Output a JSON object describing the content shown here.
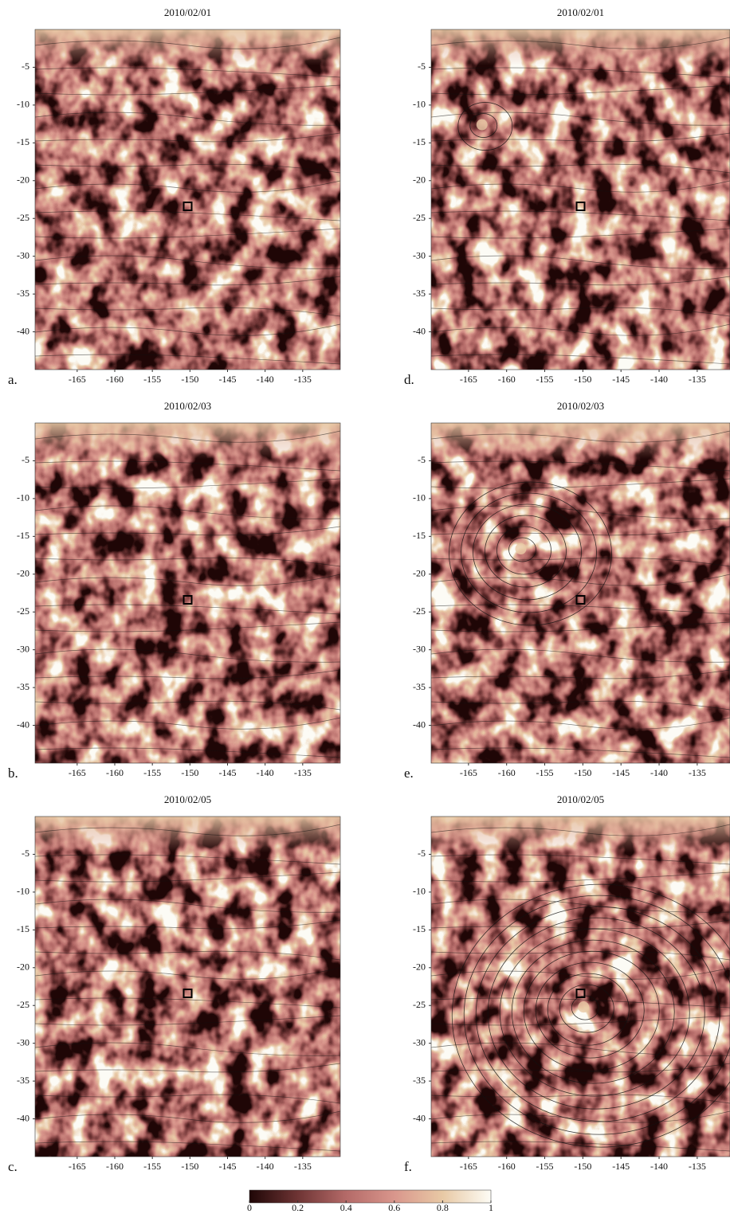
{
  "chart_data": [
    {
      "type": "heatmap",
      "title": "2010/02/01",
      "panel_label": "a.",
      "xlim": [
        -170.6,
        -130
      ],
      "ylim": [
        -45,
        0
      ],
      "xticks": [
        -165,
        -160,
        -155,
        -150,
        -145,
        -140,
        -135
      ],
      "yticks": [
        -5,
        -10,
        -15,
        -20,
        -25,
        -30,
        -35,
        -40
      ]
    },
    {
      "type": "heatmap",
      "title": "2010/02/03",
      "panel_label": "b.",
      "xlim": [
        -170.6,
        -130
      ],
      "ylim": [
        -45,
        0
      ],
      "xticks": [
        -165,
        -160,
        -155,
        -150,
        -145,
        -140,
        -135
      ],
      "yticks": [
        -5,
        -10,
        -15,
        -20,
        -25,
        -30,
        -35,
        -40
      ]
    },
    {
      "type": "heatmap",
      "title": "2010/02/05",
      "panel_label": "c.",
      "xlim": [
        -170.6,
        -130
      ],
      "ylim": [
        -45,
        0
      ],
      "xticks": [
        -165,
        -160,
        -155,
        -150,
        -145,
        -140,
        -135
      ],
      "yticks": [
        -5,
        -10,
        -15,
        -20,
        -25,
        -30,
        -35,
        -40
      ]
    },
    {
      "type": "heatmap",
      "title": "2010/02/01",
      "panel_label": "d.",
      "xlim": [
        -169.9,
        -130.7
      ],
      "ylim": [
        -45,
        0
      ],
      "xticks": [
        -165,
        -160,
        -155,
        -150,
        -145,
        -140,
        -135
      ],
      "yticks": [
        -5,
        -10,
        -15,
        -20,
        -25,
        -30,
        -35,
        -40
      ]
    },
    {
      "type": "heatmap",
      "title": "2010/02/03",
      "panel_label": "e.",
      "xlim": [
        -169.9,
        -130.7
      ],
      "ylim": [
        -45,
        0
      ],
      "xticks": [
        -165,
        -160,
        -155,
        -150,
        -145,
        -140,
        -135
      ],
      "yticks": [
        -5,
        -10,
        -15,
        -20,
        -25,
        -30,
        -35,
        -40
      ]
    },
    {
      "type": "heatmap",
      "title": "2010/02/05",
      "panel_label": "f.",
      "xlim": [
        -169.9,
        -130.7
      ],
      "ylim": [
        -45,
        0
      ],
      "xticks": [
        -165,
        -160,
        -155,
        -150,
        -145,
        -140,
        -135
      ],
      "yticks": [
        -5,
        -10,
        -15,
        -20,
        -25,
        -30,
        -35,
        -40
      ]
    },
    {
      "type": "colorbar",
      "lim": [
        0,
        1
      ],
      "ticks": [
        0,
        0.2,
        0.4,
        0.6,
        0.8,
        1
      ],
      "colors": [
        "#1f0606",
        "#6e3434",
        "#b46a68",
        "#d9968c",
        "#e8c9a5",
        "#fdfcf5"
      ]
    }
  ]
}
